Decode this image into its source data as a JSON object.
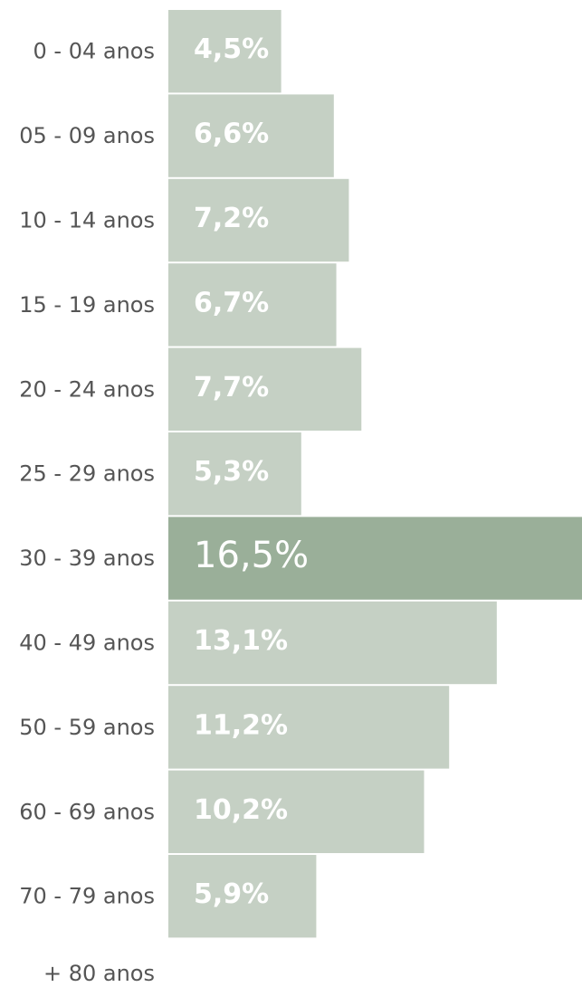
{
  "chart_data": {
    "type": "bar",
    "orientation": "horizontal",
    "categories": [
      "0 - 04 anos",
      "05 - 09 anos",
      "10 - 14 anos",
      "15 - 19 anos",
      "20 - 24 anos",
      "25 - 29 anos",
      "30 - 39 anos",
      "40 - 49 anos",
      "50 - 59 anos",
      "60 - 69 anos",
      "70 - 79 anos",
      "+ 80 anos"
    ],
    "values": [
      4.5,
      6.6,
      7.2,
      6.7,
      7.7,
      5.3,
      16.5,
      13.1,
      11.2,
      10.2,
      5.9,
      null
    ],
    "value_labels": [
      "4,5%",
      "6,6%",
      "7,2%",
      "6,7%",
      "7,7%",
      "5,3%",
      "16,5%",
      "13,1%",
      "11,2%",
      "10,2%",
      "5,9%",
      null
    ],
    "color": "#c5d0c4",
    "highlight_color": "#9aaf99"
  }
}
